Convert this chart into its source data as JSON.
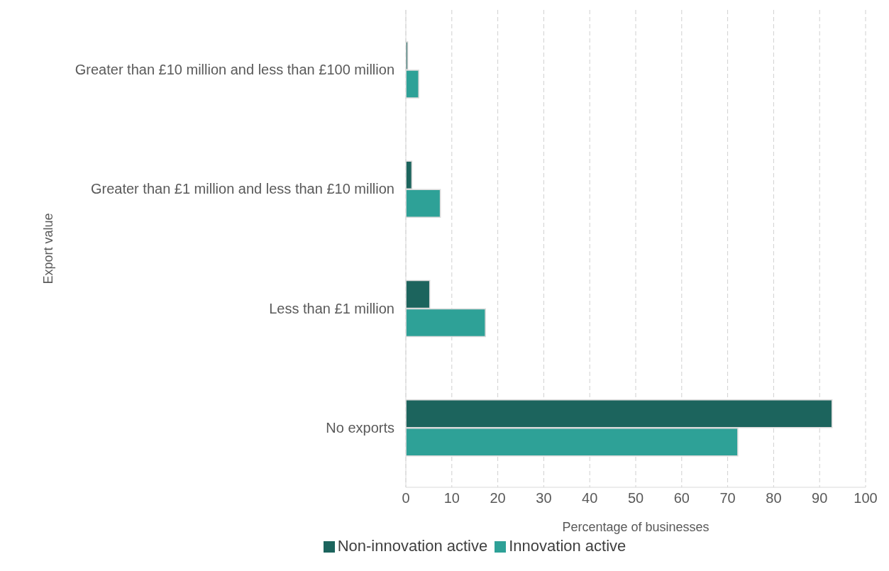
{
  "chart_data": {
    "type": "bar",
    "orientation": "horizontal",
    "xlabel": "Percentage of businesses",
    "ylabel": "Export value",
    "categories": [
      "Greater than £10 million and less than £100 million",
      "Greater than £1 million and less than £10 million",
      "Less than £1 million",
      "No exports"
    ],
    "series": [
      {
        "name": "Non-innovation active",
        "color": "#1c645d",
        "values": [
          0.4,
          1.3,
          5.2,
          92.7
        ]
      },
      {
        "name": "Innovation active",
        "color": "#2ea197",
        "values": [
          2.8,
          7.5,
          17.3,
          72.2
        ]
      }
    ],
    "xlim": [
      0,
      100
    ],
    "xticks": [
      0,
      10,
      20,
      30,
      40,
      50,
      60,
      70,
      80,
      90,
      100
    ],
    "grid": "x",
    "legend": "bottom"
  }
}
